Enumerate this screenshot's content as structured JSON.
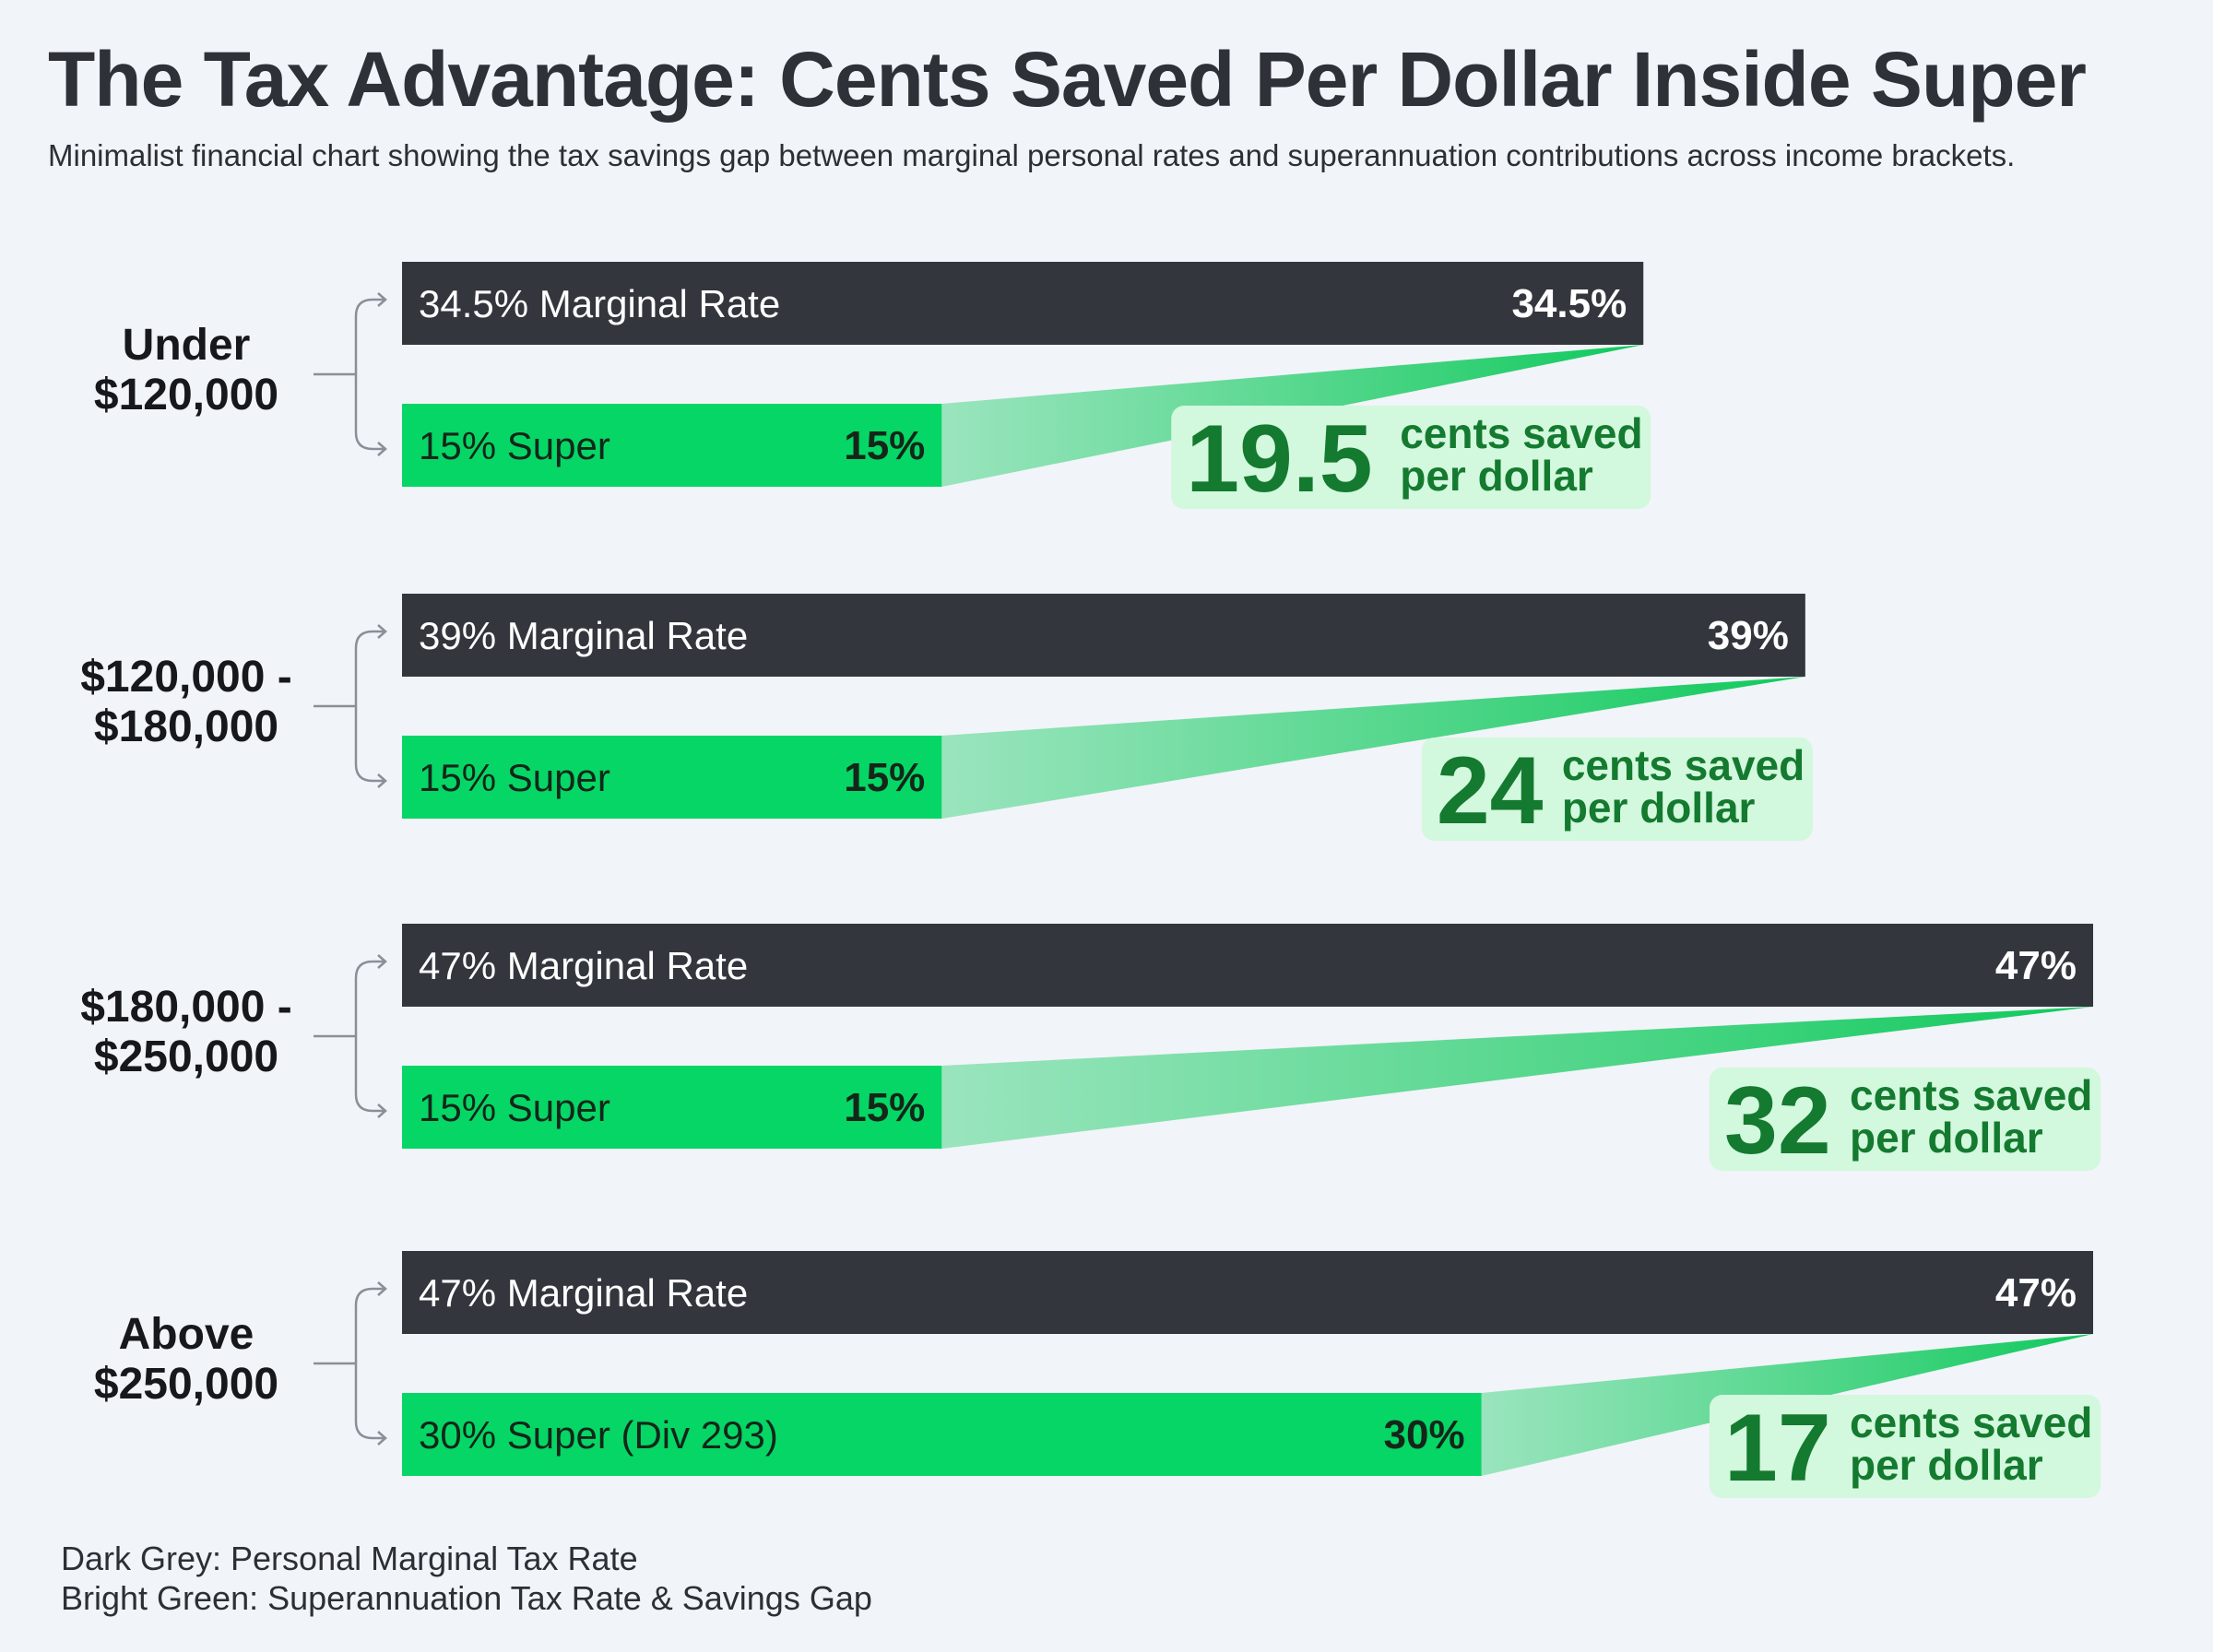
{
  "title": "The Tax Advantage: Cents Saved Per Dollar Inside Super",
  "subtitle": "Minimalist financial chart showing the tax savings gap between marginal personal rates and superannuation contributions across income brackets.",
  "colors": {
    "marginal": "#33363d",
    "super": "#06d665",
    "gap": "#2fd174",
    "badge_bg": "#d2f8dd",
    "badge_text": "#147a2f",
    "background": "#f1f4f9"
  },
  "legend": {
    "dark": "Dark Grey: Personal Marginal Tax Rate",
    "green": "Bright Green: Superannuation Tax Rate & Savings Gap"
  },
  "chart_data": {
    "type": "bar",
    "orientation": "horizontal",
    "xlim": [
      0,
      47
    ],
    "categories": [
      {
        "label_lines": [
          "Under",
          "$120,000"
        ],
        "marginal_rate": 34.5,
        "marginal_label": "34.5% Marginal Rate",
        "marginal_value_label": "34.5%",
        "super_rate": 15,
        "super_label": "15% Super",
        "super_value_label": "15%",
        "savings": "19.5",
        "savings_unit_lines": [
          "cents saved",
          "per dollar"
        ]
      },
      {
        "label_lines": [
          "$120,000 -",
          "$180,000"
        ],
        "marginal_rate": 39,
        "marginal_label": "39% Marginal Rate",
        "marginal_value_label": "39%",
        "super_rate": 15,
        "super_label": "15% Super",
        "super_value_label": "15%",
        "savings": "24",
        "savings_unit_lines": [
          "cents saved",
          "per dollar"
        ]
      },
      {
        "label_lines": [
          "$180,000 -",
          "$250,000"
        ],
        "marginal_rate": 47,
        "marginal_label": "47% Marginal Rate",
        "marginal_value_label": "47%",
        "super_rate": 15,
        "super_label": "15% Super",
        "super_value_label": "15%",
        "savings": "32",
        "savings_unit_lines": [
          "cents saved",
          "per dollar"
        ]
      },
      {
        "label_lines": [
          "Above",
          "$250,000"
        ],
        "marginal_rate": 47,
        "marginal_label": "47% Marginal Rate",
        "marginal_value_label": "47%",
        "super_rate": 30,
        "super_label": "30% Super (Div 293)",
        "super_value_label": "30%",
        "savings": "17",
        "savings_unit_lines": [
          "cents saved",
          "per dollar"
        ]
      }
    ]
  }
}
